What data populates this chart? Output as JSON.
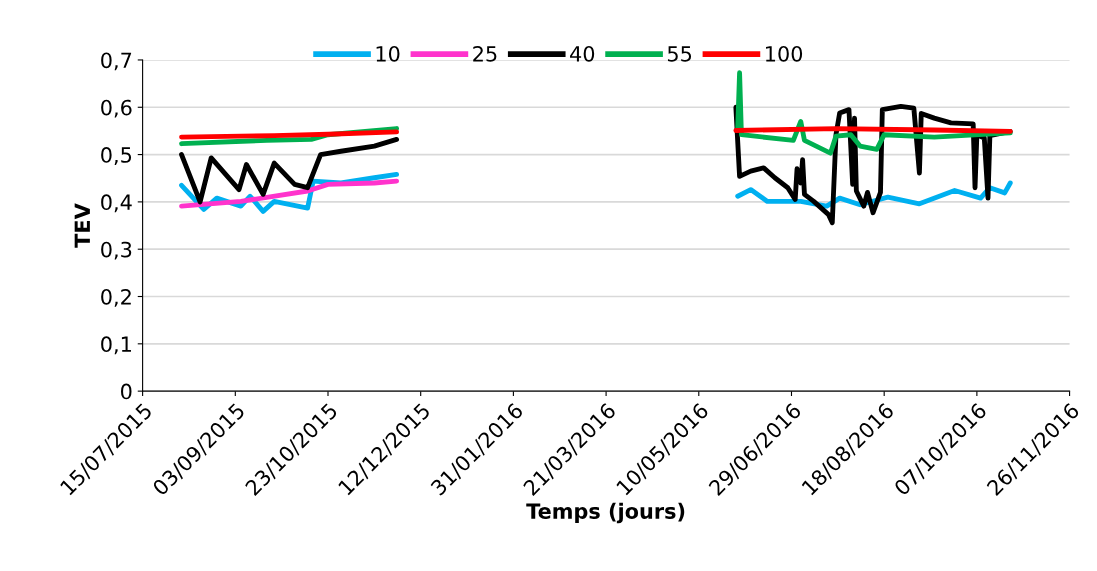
{
  "chart_data": {
    "type": "line",
    "xlabel": "Temps (jours)",
    "ylabel": "TEV",
    "legend": "top",
    "grid": "y",
    "xlim": [
      "2015-07-15",
      "2016-11-26"
    ],
    "xticks": [
      {
        "value": "2015-07-15",
        "label": "15/07/2015"
      },
      {
        "value": "2015-09-03",
        "label": "03/09/2015"
      },
      {
        "value": "2015-10-23",
        "label": "23/10/2015"
      },
      {
        "value": "2015-12-12",
        "label": "12/12/2015"
      },
      {
        "value": "2016-01-31",
        "label": "31/01/2016"
      },
      {
        "value": "2016-03-21",
        "label": "21/03/2016"
      },
      {
        "value": "2016-05-10",
        "label": "10/05/2016"
      },
      {
        "value": "2016-06-29",
        "label": "29/06/2016"
      },
      {
        "value": "2016-08-18",
        "label": "18/08/2016"
      },
      {
        "value": "2016-10-07",
        "label": "07/10/2016"
      },
      {
        "value": "2016-11-26",
        "label": "26/11/2016"
      }
    ],
    "ylim": [
      0,
      0.7
    ],
    "yticks": [
      0,
      {
        "value": 0.1,
        "label": "0,1"
      },
      {
        "value": 0.2,
        "label": "0,2"
      },
      {
        "value": 0.3,
        "label": "0,3"
      },
      {
        "value": 0.4,
        "label": "0,4"
      },
      {
        "value": 0.5,
        "label": "0,5"
      },
      {
        "value": 0.6,
        "label": "0,6"
      },
      {
        "value": 0.7,
        "label": "0,7"
      }
    ],
    "series": [
      {
        "name": "10",
        "color": "#00b0f0",
        "x": [
          "2015-08-05",
          "2015-08-17",
          "2015-08-24",
          "2015-09-06",
          "2015-09-11",
          "2015-09-18",
          "2015-09-24",
          "2015-10-12",
          "2015-10-15",
          "2015-10-30",
          "2015-11-17",
          "2015-11-29",
          "2016-02-01",
          "2016-05-31",
          "2016-06-07",
          "2016-06-16",
          "2016-07-04",
          "2016-07-18",
          "2016-07-25",
          "2016-08-05",
          "2016-08-20",
          "2016-09-06",
          "2016-09-25",
          "2016-10-09",
          "2016-10-14",
          "2016-10-22",
          "2016-10-25"
        ],
        "values": [
          0.435,
          0.384,
          0.408,
          0.391,
          0.412,
          0.38,
          0.401,
          0.387,
          0.444,
          0.44,
          0.451,
          0.458,
          null,
          0.412,
          0.426,
          0.401,
          0.401,
          0.391,
          0.408,
          0.394,
          0.41,
          0.396,
          0.424,
          0.408,
          0.43,
          0.419,
          0.44
        ]
      },
      {
        "name": "25",
        "color": "#ff33cc",
        "x": [
          "2015-08-05",
          "2015-09-06",
          "2015-10-12",
          "2015-10-23",
          "2015-11-17",
          "2015-11-29"
        ],
        "values": [
          0.391,
          0.401,
          0.423,
          0.437,
          0.44,
          0.444
        ]
      },
      {
        "name": "40",
        "color": "#000000",
        "x": [
          "2015-08-05",
          "2015-08-15",
          "2015-08-21",
          "2015-09-05",
          "2015-09-09",
          "2015-09-18",
          "2015-09-24",
          "2015-10-05",
          "2015-10-12",
          "2015-10-19",
          "2015-10-30",
          "2015-11-17",
          "2015-11-29",
          "2016-02-01",
          "2016-05-30",
          "2016-06-01",
          "2016-06-07",
          "2016-06-14",
          "2016-06-20",
          "2016-06-27",
          "2016-07-01",
          "2016-07-02",
          "2016-07-04",
          "2016-07-05",
          "2016-07-06",
          "2016-07-11",
          "2016-07-19",
          "2016-07-21",
          "2016-07-23",
          "2016-07-25",
          "2016-07-30",
          "2016-08-01",
          "2016-08-02",
          "2016-08-03",
          "2016-08-07",
          "2016-08-09",
          "2016-08-12",
          "2016-08-16",
          "2016-08-17",
          "2016-08-27",
          "2016-09-03",
          "2016-09-06",
          "2016-09-07",
          "2016-09-14",
          "2016-09-23",
          "2016-10-05",
          "2016-10-06",
          "2016-10-07",
          "2016-10-11",
          "2016-10-13",
          "2016-10-14",
          "2016-10-25"
        ],
        "values": [
          0.5,
          0.4,
          0.493,
          0.426,
          0.479,
          0.416,
          0.482,
          0.437,
          0.43,
          0.5,
          0.507,
          0.518,
          0.532,
          null,
          0.6,
          0.454,
          0.465,
          0.472,
          0.451,
          0.43,
          0.405,
          0.47,
          0.44,
          0.489,
          0.416,
          0.401,
          0.373,
          0.356,
          0.542,
          0.588,
          0.595,
          0.437,
          0.577,
          0.423,
          0.391,
          0.42,
          0.377,
          0.42,
          0.595,
          0.602,
          0.598,
          0.461,
          0.587,
          0.577,
          0.567,
          0.565,
          0.43,
          0.542,
          0.535,
          0.408,
          0.54,
          0.549
        ]
      },
      {
        "name": "55",
        "color": "#00b050",
        "x": [
          "2015-08-05",
          "2015-09-20",
          "2015-10-14",
          "2015-10-23",
          "2015-11-29",
          "2016-02-01",
          "2016-05-31",
          "2016-06-01",
          "2016-06-02",
          "2016-06-30",
          "2016-07-04",
          "2016-07-06",
          "2016-07-20",
          "2016-07-23",
          "2016-07-31",
          "2016-08-05",
          "2016-08-14",
          "2016-08-18",
          "2016-09-14",
          "2016-10-25"
        ],
        "values": [
          0.523,
          0.53,
          0.532,
          0.542,
          0.555,
          null,
          0.556,
          0.673,
          0.542,
          0.53,
          0.57,
          0.53,
          0.503,
          0.539,
          0.542,
          0.518,
          0.511,
          0.542,
          0.537,
          0.546
        ]
      },
      {
        "name": "100",
        "color": "#ff0000",
        "x": [
          "2015-08-05",
          "2015-09-24",
          "2015-10-23",
          "2015-11-29",
          "2016-02-01",
          "2016-05-30",
          "2016-07-23",
          "2016-09-14",
          "2016-10-25"
        ],
        "values": [
          0.537,
          0.54,
          0.543,
          0.548,
          null,
          0.551,
          0.555,
          0.552,
          0.549
        ]
      }
    ]
  }
}
